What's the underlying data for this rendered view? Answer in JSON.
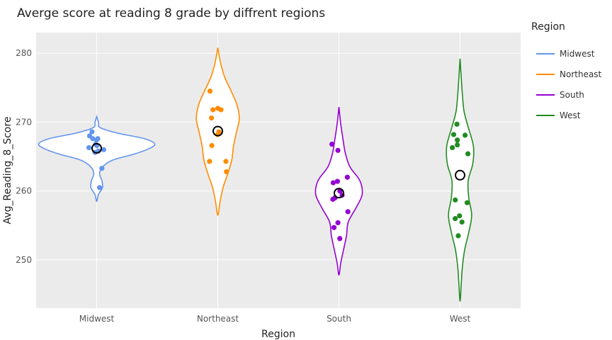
{
  "chart_data": {
    "type": "violin",
    "title": "Averge score at reading 8 grade by diffrent regions",
    "xlabel": "Region",
    "ylabel": "Avg_Reading_8_Score",
    "ylim": [
      243,
      283
    ],
    "yticks": [
      250,
      260,
      270,
      280
    ],
    "categories": [
      "Midwest",
      "Northeast",
      "South",
      "West"
    ],
    "grid": true,
    "legend": {
      "title": "Region",
      "placement": "right",
      "items": [
        {
          "label": "Midwest",
          "color": "#6495ED"
        },
        {
          "label": "Northeast",
          "color": "#FF8C00"
        },
        {
          "label": "South",
          "color": "#9400D3"
        },
        {
          "label": "West",
          "color": "#228B22"
        }
      ]
    },
    "series": [
      {
        "category": "Midwest",
        "color": "#6495ED",
        "mean": 266.2,
        "points": [
          267.4,
          267.6,
          268.0,
          268.6,
          266.8,
          266.6,
          266.3,
          266.0,
          265.8,
          265.6,
          267.6,
          263.3,
          260.5
        ],
        "violin_density": [
          [
            258.5,
            0
          ],
          [
            259.5,
            0.03
          ],
          [
            260.5,
            0.1
          ],
          [
            261.5,
            0.09
          ],
          [
            262.5,
            0.05
          ],
          [
            263.5,
            0.1
          ],
          [
            264.5,
            0.28
          ],
          [
            265.3,
            0.62
          ],
          [
            266.0,
            0.86
          ],
          [
            266.8,
            1.0
          ],
          [
            267.6,
            0.82
          ],
          [
            268.4,
            0.36
          ],
          [
            269.2,
            0.06
          ],
          [
            270.0,
            0.03
          ],
          [
            270.8,
            0
          ]
        ]
      },
      {
        "category": "Northeast",
        "color": "#FF8C00",
        "mean": 268.7,
        "points": [
          274.5,
          272.0,
          271.8,
          271.8,
          270.6,
          268.6,
          268.2,
          266.6,
          264.3,
          264.3,
          262.8
        ],
        "violin_density": [
          [
            256.5,
            0
          ],
          [
            258.5,
            0.04
          ],
          [
            260.5,
            0.09
          ],
          [
            262.5,
            0.17
          ],
          [
            264.5,
            0.24
          ],
          [
            266.5,
            0.27
          ],
          [
            268.5,
            0.32
          ],
          [
            270.5,
            0.37
          ],
          [
            272.5,
            0.33
          ],
          [
            274.5,
            0.23
          ],
          [
            276.5,
            0.12
          ],
          [
            278.5,
            0.05
          ],
          [
            280.8,
            0
          ]
        ]
      },
      {
        "category": "South",
        "color": "#9400D3",
        "mean": 259.7,
        "points": [
          266.8,
          265.9,
          262.0,
          261.2,
          261.4,
          260.0,
          259.4,
          259.0,
          258.8,
          257.0,
          255.4,
          254.7,
          253.1
        ],
        "violin_density": [
          [
            247.8,
            0
          ],
          [
            249.5,
            0.03
          ],
          [
            251.5,
            0.08
          ],
          [
            253.5,
            0.13
          ],
          [
            255.5,
            0.16
          ],
          [
            257.5,
            0.29
          ],
          [
            259.5,
            0.4
          ],
          [
            261.5,
            0.36
          ],
          [
            263.5,
            0.19
          ],
          [
            265.5,
            0.11
          ],
          [
            267.5,
            0.07
          ],
          [
            269.8,
            0.03
          ],
          [
            272.2,
            0
          ]
        ]
      },
      {
        "category": "West",
        "color": "#228B22",
        "mean": 262.3,
        "points": [
          269.7,
          268.2,
          268.1,
          267.4,
          266.7,
          266.3,
          265.4,
          258.7,
          258.3,
          256.4,
          256.0,
          255.5,
          253.5
        ],
        "violin_density": [
          [
            244.0,
            0
          ],
          [
            246.5,
            0.02
          ],
          [
            249.0,
            0.04
          ],
          [
            251.5,
            0.08
          ],
          [
            254.0,
            0.15
          ],
          [
            256.5,
            0.2
          ],
          [
            259.0,
            0.15
          ],
          [
            261.5,
            0.14
          ],
          [
            264.0,
            0.22
          ],
          [
            266.5,
            0.23
          ],
          [
            269.0,
            0.15
          ],
          [
            271.5,
            0.07
          ],
          [
            274.0,
            0.04
          ],
          [
            276.5,
            0.02
          ],
          [
            279.2,
            0
          ]
        ]
      }
    ]
  }
}
